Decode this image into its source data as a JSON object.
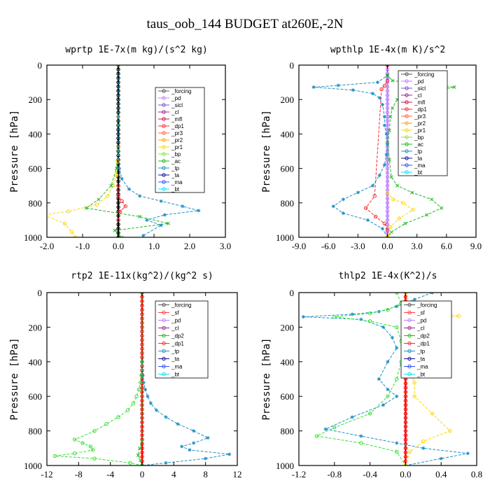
{
  "figure_title": "taus_oob_144  BUDGET at260E,-2N",
  "chart_data": [
    {
      "type": "line",
      "title": "wprtp  1E-7x(m kg)/(s^2 kg)",
      "ylabel": "Pressure [hPa]",
      "xlim": [
        -2.0,
        3.0
      ],
      "xticks": [
        "-2.0",
        "-1.0",
        "0.0",
        "1.0",
        "2.0",
        "3.0"
      ],
      "ylim": [
        1000,
        0
      ],
      "yticks": [
        "0",
        "200",
        "400",
        "600",
        "800",
        "1000"
      ],
      "legend": [
        "_forcing",
        "_pd",
        "_sicl",
        "_cl",
        "_mfl",
        "_dp1",
        "_pr3",
        "_pr2",
        "_pr1",
        "_bp",
        "_ac",
        "_tp",
        "_ta",
        "_ma",
        "_bt"
      ],
      "series": [
        {
          "name": "_forcing",
          "color": "#000000",
          "marker": "o",
          "x": [
            0,
            0,
            0,
            0,
            0,
            0,
            0,
            0,
            0,
            0,
            0,
            0,
            0,
            0,
            0,
            0,
            0,
            0,
            0,
            0,
            0,
            0,
            0,
            0,
            0,
            0,
            0,
            0,
            0,
            0,
            0,
            0,
            0,
            0,
            0,
            0,
            0,
            0,
            0,
            0,
            0
          ],
          "y": [
            0,
            25,
            50,
            75,
            100,
            125,
            150,
            175,
            200,
            225,
            250,
            275,
            300,
            325,
            350,
            375,
            400,
            425,
            450,
            475,
            500,
            525,
            550,
            575,
            600,
            625,
            650,
            675,
            700,
            725,
            750,
            775,
            800,
            825,
            850,
            875,
            900,
            925,
            950,
            975,
            1000
          ]
        },
        {
          "name": "_pr1",
          "color": "#ffd700",
          "marker": "o",
          "x": [
            0,
            0,
            0,
            -0.02,
            -0.05,
            -0.15,
            -0.3,
            -0.6,
            -1.4,
            -2.1,
            -1.5,
            -1.3,
            -1.2
          ],
          "y": [
            0,
            300,
            480,
            560,
            640,
            700,
            760,
            810,
            850,
            870,
            920,
            970,
            1000
          ]
        },
        {
          "name": "_ac",
          "color": "#22b922",
          "marker": "x",
          "x": [
            0,
            0,
            0,
            -0.05,
            -0.2,
            -0.55,
            -0.9,
            0.6,
            1.4,
            -0.1,
            0.1
          ],
          "y": [
            0,
            350,
            500,
            600,
            700,
            780,
            830,
            880,
            920,
            960,
            1000
          ]
        },
        {
          "name": "_tp",
          "color": "#1e90c8",
          "marker": "*",
          "x": [
            0,
            0,
            0,
            0.03,
            0.1,
            0.3,
            0.6,
            1.2,
            1.8,
            2.25,
            1.3,
            0.8,
            1.2,
            0.7
          ],
          "y": [
            0,
            300,
            500,
            600,
            660,
            720,
            760,
            790,
            820,
            845,
            870,
            900,
            930,
            990
          ]
        },
        {
          "name": "_dp1",
          "color": "#ff2a2a",
          "marker": "o",
          "x": [
            0,
            0,
            0.1,
            0.2,
            0.05,
            0
          ],
          "y": [
            700,
            760,
            790,
            820,
            850,
            900
          ]
        }
      ]
    },
    {
      "type": "line",
      "title": "wpthlp  1E-4x(m K)/s^2",
      "ylabel": "Pressure [hPa]",
      "xlim": [
        -9.0,
        9.0
      ],
      "xticks": [
        "-9.0",
        "-6.0",
        "-3.0",
        "0.0",
        "3.0",
        "6.0",
        "9.0"
      ],
      "ylim": [
        1000,
        0
      ],
      "yticks": [
        "0",
        "200",
        "400",
        "600",
        "800",
        "1000"
      ],
      "legend": [
        "_forcing",
        "_pd",
        "_sicl",
        "_cl",
        "_mfl",
        "_dp1",
        "_pr3",
        "_pr2",
        "_pr1",
        "_bp",
        "_ac",
        "_tp",
        "_ta",
        "_ma",
        "_bt"
      ],
      "series": [
        {
          "name": "_pd",
          "color": "#c080ff",
          "marker": "o",
          "x": [
            0,
            0,
            0,
            0,
            0,
            0,
            0,
            0,
            0,
            0,
            0,
            0,
            0,
            0,
            0,
            0,
            0,
            0,
            0,
            0,
            0,
            0,
            0,
            0,
            0,
            0,
            0,
            0,
            0,
            0,
            0,
            0,
            0,
            0,
            0,
            0,
            0,
            0,
            0,
            0,
            0
          ],
          "y": [
            0,
            25,
            50,
            75,
            100,
            125,
            150,
            175,
            200,
            225,
            250,
            275,
            300,
            325,
            350,
            375,
            400,
            425,
            450,
            475,
            500,
            525,
            550,
            575,
            600,
            625,
            650,
            675,
            700,
            725,
            750,
            775,
            800,
            825,
            850,
            875,
            900,
            925,
            950,
            975,
            1000
          ]
        },
        {
          "name": "_tp",
          "color": "#1e90c8",
          "marker": "*",
          "x": [
            0,
            0,
            -1,
            -5,
            -7.5,
            -3.5,
            -1.5,
            -0.8,
            -0.5,
            -0.3,
            -0.3,
            -0.1,
            0,
            -0.1,
            -0.3,
            -0.8,
            -1.5,
            -3,
            -4.5,
            -5.5,
            -4.5,
            -2,
            -0.5,
            0
          ],
          "y": [
            0,
            60,
            100,
            118,
            128,
            145,
            165,
            190,
            230,
            300,
            350,
            400,
            460,
            520,
            580,
            640,
            700,
            740,
            780,
            820,
            860,
            900,
            950,
            1000
          ]
        },
        {
          "name": "_ac",
          "color": "#22b922",
          "marker": "x",
          "x": [
            0,
            0,
            0.5,
            3,
            6.8,
            4.2,
            2,
            1,
            0.5,
            0.3,
            0.2,
            0,
            0.2,
            0.4,
            1,
            2.5,
            4.5,
            5.5,
            4,
            1.8,
            0.4,
            0
          ],
          "y": [
            0,
            60,
            90,
            110,
            128,
            155,
            175,
            200,
            250,
            300,
            380,
            450,
            550,
            650,
            700,
            740,
            780,
            830,
            870,
            920,
            970,
            1000
          ]
        },
        {
          "name": "_dp1",
          "color": "#ff2a2a",
          "marker": "o",
          "x": [
            0,
            0,
            -0.3,
            -0.6,
            -1.3,
            -2.2,
            -1.2,
            -0.3,
            0,
            0
          ],
          "y": [
            0,
            90,
            120,
            140,
            760,
            830,
            880,
            920,
            960,
            1000
          ]
        },
        {
          "name": "_pr1",
          "color": "#ffd700",
          "marker": "o",
          "x": [
            0,
            0.6,
            1.6,
            2.6,
            1.2,
            0.3,
            0
          ],
          "y": [
            740,
            780,
            800,
            840,
            890,
            940,
            1000
          ]
        }
      ]
    },
    {
      "type": "line",
      "title": "rtp2  1E-11x(kg^2)/(kg^2 s)",
      "ylabel": "Pressure [hPa]",
      "xlim": [
        -12,
        12
      ],
      "xticks": [
        "-12",
        "-8",
        "-4",
        "0",
        "4",
        "8",
        "12"
      ],
      "ylim": [
        1000,
        0
      ],
      "yticks": [
        "0",
        "200",
        "400",
        "600",
        "800",
        "1000"
      ],
      "legend": [
        "_forcing",
        "_sf",
        "_pd",
        "_cl",
        "_dp2",
        "_dp1",
        "_tp",
        "_ta",
        "_ma",
        "_bt"
      ],
      "series": [
        {
          "name": "_forcing",
          "color": "#ff0000",
          "marker": "o",
          "x": [
            0,
            0,
            0,
            0,
            0,
            0,
            0,
            0,
            0,
            0,
            0,
            0,
            0,
            0,
            0,
            0,
            0,
            0,
            0,
            0,
            0,
            0,
            0,
            0,
            0,
            0,
            0,
            0,
            0,
            0,
            0,
            0,
            0,
            0,
            0,
            0,
            0,
            0,
            0,
            0,
            0
          ],
          "y": [
            0,
            25,
            50,
            75,
            100,
            125,
            150,
            175,
            200,
            225,
            250,
            275,
            300,
            325,
            350,
            375,
            400,
            425,
            450,
            475,
            500,
            525,
            550,
            575,
            600,
            625,
            650,
            675,
            700,
            725,
            750,
            775,
            800,
            825,
            850,
            875,
            900,
            925,
            950,
            975,
            1000
          ]
        },
        {
          "name": "_dp1",
          "color": "#33e033",
          "marker": "o",
          "x": [
            0,
            0,
            -0.1,
            -0.2,
            -0.4,
            -0.7,
            -1.1,
            -1.8,
            -3,
            -4.5,
            -6,
            -8.5,
            -7.5,
            -6.5,
            -6.2,
            -8.5,
            -11,
            -6,
            -1.5,
            0
          ],
          "y": [
            0,
            400,
            480,
            520,
            560,
            600,
            640,
            680,
            720,
            760,
            800,
            850,
            870,
            890,
            910,
            930,
            945,
            960,
            985,
            1000
          ]
        },
        {
          "name": "_tp",
          "color": "#1e90c8",
          "marker": "*",
          "x": [
            0,
            0,
            0.1,
            0.2,
            0.4,
            0.7,
            1.1,
            1.8,
            3,
            4.5,
            6.5,
            8.3,
            6.5,
            5,
            6,
            11,
            8,
            3,
            0
          ],
          "y": [
            0,
            400,
            480,
            520,
            560,
            600,
            640,
            680,
            720,
            760,
            800,
            840,
            870,
            890,
            910,
            935,
            960,
            985,
            1000
          ]
        },
        {
          "name": "_dp2",
          "color": "#22b922",
          "marker": "x",
          "x": [
            0,
            0,
            -0.3,
            -0.5,
            -0.2,
            0
          ],
          "y": [
            0,
            860,
            900,
            940,
            970,
            1000
          ]
        }
      ]
    },
    {
      "type": "line",
      "title": "thlp2  1E-4x(K^2)/s",
      "ylabel": "Pressure [hPa]",
      "xlim": [
        -1.2,
        0.8
      ],
      "xticks": [
        "-1.2",
        "-0.8",
        "-0.4",
        "0.0",
        "0.4",
        "0.8"
      ],
      "ylim": [
        1000,
        0
      ],
      "yticks": [
        "0",
        "200",
        "400",
        "600",
        "800",
        "1000"
      ],
      "legend": [
        "_forcing",
        "_sf",
        "_pd",
        "_cl",
        "_dp2",
        "_dp1",
        "_tp",
        "_ta",
        "_ma",
        "_bt"
      ],
      "series": [
        {
          "name": "_forcing",
          "color": "#ff0000",
          "marker": "o",
          "x": [
            0,
            0,
            0,
            0,
            0,
            0,
            0,
            0,
            0,
            0,
            0,
            0,
            0,
            0,
            0,
            0,
            0,
            0,
            0,
            0,
            0,
            0,
            0,
            0,
            0,
            0,
            0,
            0,
            0,
            0,
            0,
            0,
            0,
            0,
            0,
            0,
            0,
            0,
            0,
            0,
            0
          ],
          "y": [
            0,
            25,
            50,
            75,
            100,
            125,
            150,
            175,
            200,
            225,
            250,
            275,
            300,
            325,
            350,
            375,
            400,
            425,
            450,
            475,
            500,
            525,
            550,
            575,
            600,
            625,
            650,
            675,
            700,
            725,
            750,
            775,
            800,
            825,
            850,
            875,
            900,
            925,
            950,
            975,
            1000
          ]
        },
        {
          "name": "_tp",
          "color": "#1e90c8",
          "marker": "*",
          "x": [
            0.3,
            0.1,
            -0.1,
            -0.3,
            -0.6,
            -1.15,
            -0.5,
            -0.25,
            -0.15,
            -0.1,
            -0.2,
            -0.3,
            -0.2,
            -0.1,
            -0.25,
            -0.6,
            -0.9,
            -0.5,
            -0.1,
            0.2,
            0.7,
            0.4,
            0
          ],
          "y": [
            0,
            40,
            80,
            110,
            125,
            140,
            155,
            200,
            260,
            320,
            400,
            500,
            560,
            600,
            650,
            720,
            790,
            830,
            870,
            900,
            930,
            960,
            1000
          ]
        },
        {
          "name": "_dp1",
          "color": "#33e033",
          "marker": "o",
          "x": [
            -0.1,
            -0.05,
            -0.2,
            -0.4,
            -0.8,
            -0.4,
            -0.1,
            -0.05,
            -0.05,
            -0.1,
            -0.2,
            -0.4,
            -0.8,
            -1.0,
            -0.5,
            -0.1,
            0
          ],
          "y": [
            0,
            60,
            100,
            120,
            140,
            165,
            200,
            280,
            400,
            500,
            600,
            700,
            780,
            830,
            870,
            920,
            1000
          ]
        },
        {
          "name": "_pd",
          "color": "#ffd700",
          "marker": "o",
          "x": [
            0,
            0.05,
            0.3,
            0.6,
            0.35,
            0.1,
            0.05,
            0.05,
            0.1,
            0.1,
            0.3,
            0.5,
            0.2,
            0.05,
            0
          ],
          "y": [
            0,
            90,
            120,
            135,
            160,
            200,
            300,
            450,
            520,
            600,
            700,
            800,
            860,
            920,
            1000
          ]
        }
      ]
    }
  ]
}
